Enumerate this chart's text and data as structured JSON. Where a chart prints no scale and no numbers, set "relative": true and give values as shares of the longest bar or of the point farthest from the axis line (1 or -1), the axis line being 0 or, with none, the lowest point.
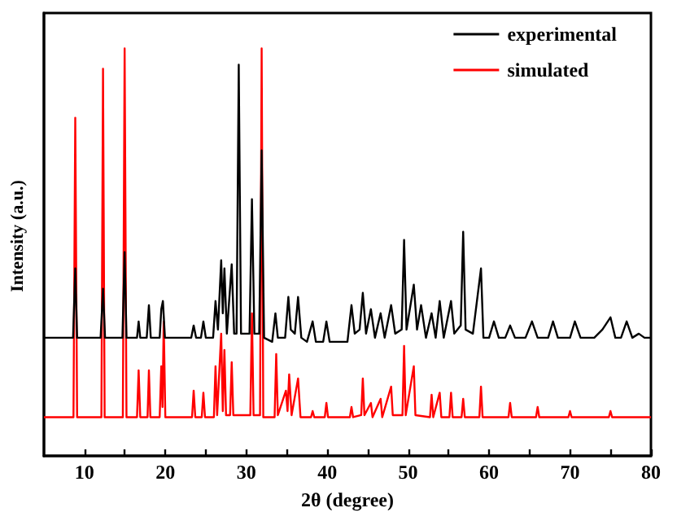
{
  "chart_data": {
    "type": "line",
    "relative": true,
    "xlabel": "2θ (degree)",
    "ylabel": "Intensity (a.u.)",
    "xlim": [
      5,
      80
    ],
    "xticks": [
      10,
      {
        "value": 15,
        "label": null
      },
      20,
      {
        "value": 25,
        "label": null
      },
      30,
      {
        "value": 35,
        "label": null
      },
      40,
      {
        "value": 45,
        "label": null
      },
      50,
      {
        "value": 55,
        "label": null
      },
      60,
      {
        "value": 65,
        "label": null
      },
      70,
      {
        "value": 75,
        "label": null
      },
      80
    ],
    "legend": "top right",
    "grid": false,
    "marker": "none",
    "line_style": "solid",
    "series": [
      {
        "name": "experimental",
        "color": "#000000",
        "x": [
          5,
          8.6,
          8.87,
          9.1,
          12.0,
          12.3,
          12.55,
          14.7,
          14.97,
          15.2,
          16.5,
          16.7,
          16.9,
          17.7,
          17.97,
          18.2,
          19.3,
          19.5,
          19.7,
          19.95,
          23.2,
          23.5,
          23.8,
          24.4,
          24.7,
          25.0,
          25.9,
          26.2,
          26.5,
          26.9,
          27.1,
          27.3,
          27.6,
          28.2,
          28.5,
          28.8,
          29.07,
          29.35,
          30.4,
          30.7,
          31.0,
          31.6,
          31.9,
          32.2,
          33.2,
          33.6,
          33.9,
          34.8,
          35.2,
          35.5,
          36.0,
          36.4,
          36.8,
          37.5,
          38.2,
          38.6,
          39.5,
          39.9,
          40.3,
          42.5,
          43.0,
          43.4,
          44.0,
          44.4,
          44.8,
          45.4,
          45.9,
          46.6,
          47.1,
          47.9,
          48.4,
          49.2,
          49.5,
          49.8,
          50.7,
          51.1,
          51.6,
          52.2,
          52.9,
          53.4,
          53.9,
          54.4,
          55.3,
          55.7,
          56.5,
          56.8,
          57.1,
          58.0,
          59.0,
          59.3,
          60.0,
          60.6,
          61.2,
          62.0,
          62.6,
          63.2,
          64.5,
          65.3,
          66.0,
          67.3,
          67.9,
          68.5,
          70.0,
          70.6,
          71.3,
          73.0,
          74.0,
          75.0,
          75.6,
          76.3,
          77.0,
          77.7,
          78.5,
          79.2,
          80
        ],
        "values": [
          0.29,
          0.29,
          0.46,
          0.29,
          0.29,
          0.41,
          0.29,
          0.29,
          0.5,
          0.29,
          0.29,
          0.33,
          0.29,
          0.29,
          0.37,
          0.29,
          0.29,
          0.36,
          0.38,
          0.29,
          0.29,
          0.32,
          0.29,
          0.29,
          0.33,
          0.29,
          0.29,
          0.38,
          0.31,
          0.48,
          0.35,
          0.46,
          0.3,
          0.47,
          0.3,
          0.3,
          0.96,
          0.3,
          0.3,
          0.63,
          0.3,
          0.3,
          0.75,
          0.29,
          0.28,
          0.35,
          0.29,
          0.29,
          0.39,
          0.31,
          0.3,
          0.39,
          0.29,
          0.28,
          0.33,
          0.28,
          0.28,
          0.33,
          0.28,
          0.28,
          0.37,
          0.3,
          0.31,
          0.4,
          0.3,
          0.36,
          0.29,
          0.35,
          0.29,
          0.37,
          0.3,
          0.31,
          0.53,
          0.31,
          0.42,
          0.31,
          0.37,
          0.29,
          0.35,
          0.29,
          0.38,
          0.29,
          0.38,
          0.3,
          0.32,
          0.55,
          0.31,
          0.3,
          0.46,
          0.29,
          0.29,
          0.33,
          0.29,
          0.29,
          0.32,
          0.29,
          0.29,
          0.33,
          0.29,
          0.29,
          0.33,
          0.29,
          0.29,
          0.33,
          0.29,
          0.29,
          0.31,
          0.34,
          0.29,
          0.29,
          0.33,
          0.29,
          0.3,
          0.29,
          0.29
        ]
      },
      {
        "name": "simulated",
        "color": "#ff0000",
        "x": [
          5,
          8.65,
          8.87,
          9.1,
          12.1,
          12.3,
          12.5,
          14.75,
          14.97,
          15.2,
          16.5,
          16.7,
          16.9,
          17.8,
          17.97,
          18.15,
          19.3,
          19.5,
          19.65,
          19.8,
          20.0,
          23.3,
          23.5,
          23.7,
          24.5,
          24.7,
          24.9,
          26.0,
          26.2,
          26.4,
          26.9,
          27.1,
          27.3,
          27.5,
          28.0,
          28.2,
          28.4,
          28.85,
          29.05,
          29.25,
          30.5,
          30.7,
          30.9,
          31.7,
          31.9,
          32.1,
          33.5,
          33.7,
          33.9,
          34.9,
          35.1,
          35.3,
          35.6,
          36.4,
          36.7,
          38.0,
          38.2,
          38.4,
          39.7,
          39.9,
          40.1,
          42.8,
          43.0,
          43.2,
          44.2,
          44.4,
          44.6,
          45.4,
          45.6,
          46.6,
          46.8,
          47.9,
          48.1,
          49.3,
          49.5,
          49.7,
          50.7,
          50.9,
          52.7,
          52.9,
          53.1,
          53.9,
          54.1,
          55.1,
          55.3,
          55.5,
          56.6,
          56.8,
          57.0,
          58.8,
          59.0,
          59.2,
          62.4,
          62.6,
          62.8,
          65.8,
          66.0,
          66.2,
          69.8,
          70.0,
          70.2,
          74.8,
          75.0,
          75.2,
          80
        ],
        "values": [
          0.095,
          0.095,
          0.83,
          0.095,
          0.095,
          0.95,
          0.095,
          0.095,
          1,
          0.095,
          0.095,
          0.21,
          0.095,
          0.095,
          0.21,
          0.095,
          0.095,
          0.22,
          0.12,
          0.33,
          0.095,
          0.095,
          0.16,
          0.095,
          0.095,
          0.155,
          0.095,
          0.095,
          0.22,
          0.1,
          0.3,
          0.11,
          0.26,
          0.1,
          0.1,
          0.23,
          0.1,
          0.1,
          null,
          0.1,
          0.1,
          0.35,
          0.1,
          0.1,
          1,
          0.095,
          0.095,
          0.25,
          0.1,
          0.16,
          0.11,
          0.2,
          0.1,
          0.19,
          0.095,
          0.095,
          0.11,
          0.095,
          0.095,
          0.13,
          0.095,
          0.095,
          0.12,
          0.095,
          0.1,
          0.19,
          0.1,
          0.13,
          0.095,
          0.14,
          0.095,
          0.17,
          0.1,
          0.1,
          0.27,
          0.1,
          0.22,
          0.1,
          0.095,
          0.15,
          0.095,
          0.155,
          0.095,
          0.095,
          0.155,
          0.095,
          0.095,
          0.14,
          0.095,
          0.095,
          0.17,
          0.095,
          0.095,
          0.13,
          0.095,
          0.095,
          0.12,
          0.095,
          0.095,
          0.11,
          0.095,
          0.095,
          0.11,
          0.095,
          0.095
        ]
      }
    ]
  }
}
